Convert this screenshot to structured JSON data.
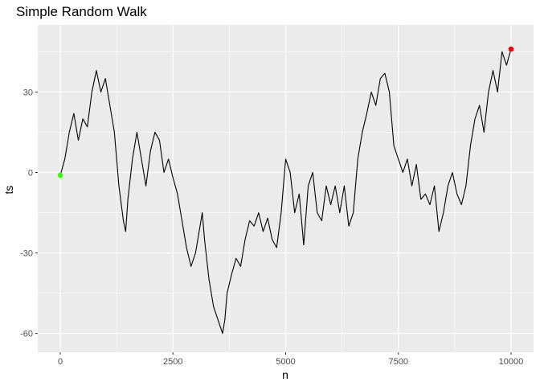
{
  "chart_data": {
    "type": "line",
    "title": "Simple Random Walk",
    "xlabel": "n",
    "ylabel": "ts",
    "xlim": [
      -500,
      10500
    ],
    "ylim": [
      -67,
      55
    ],
    "x_ticks": [
      0,
      2500,
      5000,
      7500,
      10000
    ],
    "x_tick_labels": [
      "0",
      "2500",
      "5000",
      "7500",
      "10000"
    ],
    "y_ticks": [
      -60,
      -30,
      0,
      30
    ],
    "y_tick_labels": [
      "-60",
      "-30",
      "0",
      "30"
    ],
    "grid": true,
    "panel_background": "#ebebeb",
    "grid_color": "#ffffff",
    "line_color": "#000000",
    "series": [
      {
        "points": [
          [
            0,
            -1
          ],
          [
            100,
            5
          ],
          [
            200,
            15
          ],
          [
            300,
            22
          ],
          [
            400,
            12
          ],
          [
            500,
            20
          ],
          [
            600,
            17
          ],
          [
            700,
            30
          ],
          [
            800,
            38
          ],
          [
            900,
            30
          ],
          [
            1000,
            35
          ],
          [
            1100,
            25
          ],
          [
            1200,
            15
          ],
          [
            1300,
            -5
          ],
          [
            1400,
            -18
          ],
          [
            1450,
            -22
          ],
          [
            1500,
            -10
          ],
          [
            1600,
            5
          ],
          [
            1700,
            15
          ],
          [
            1800,
            5
          ],
          [
            1900,
            -5
          ],
          [
            2000,
            8
          ],
          [
            2100,
            15
          ],
          [
            2200,
            12
          ],
          [
            2300,
            0
          ],
          [
            2400,
            5
          ],
          [
            2500,
            -2
          ],
          [
            2600,
            -8
          ],
          [
            2700,
            -18
          ],
          [
            2800,
            -28
          ],
          [
            2900,
            -35
          ],
          [
            3000,
            -30
          ],
          [
            3100,
            -20
          ],
          [
            3150,
            -15
          ],
          [
            3200,
            -25
          ],
          [
            3300,
            -40
          ],
          [
            3400,
            -50
          ],
          [
            3500,
            -55
          ],
          [
            3600,
            -60
          ],
          [
            3650,
            -55
          ],
          [
            3700,
            -45
          ],
          [
            3800,
            -38
          ],
          [
            3900,
            -32
          ],
          [
            4000,
            -35
          ],
          [
            4100,
            -25
          ],
          [
            4200,
            -18
          ],
          [
            4300,
            -20
          ],
          [
            4400,
            -15
          ],
          [
            4500,
            -22
          ],
          [
            4600,
            -17
          ],
          [
            4700,
            -25
          ],
          [
            4800,
            -28
          ],
          [
            4900,
            -15
          ],
          [
            5000,
            5
          ],
          [
            5100,
            0
          ],
          [
            5200,
            -15
          ],
          [
            5300,
            -8
          ],
          [
            5400,
            -27
          ],
          [
            5500,
            -5
          ],
          [
            5600,
            0
          ],
          [
            5700,
            -15
          ],
          [
            5800,
            -18
          ],
          [
            5900,
            -5
          ],
          [
            6000,
            -12
          ],
          [
            6100,
            -5
          ],
          [
            6200,
            -15
          ],
          [
            6300,
            -5
          ],
          [
            6400,
            -20
          ],
          [
            6500,
            -15
          ],
          [
            6600,
            5
          ],
          [
            6700,
            15
          ],
          [
            6800,
            22
          ],
          [
            6900,
            30
          ],
          [
            7000,
            25
          ],
          [
            7100,
            35
          ],
          [
            7200,
            37
          ],
          [
            7300,
            30
          ],
          [
            7400,
            10
          ],
          [
            7500,
            5
          ],
          [
            7600,
            0
          ],
          [
            7700,
            5
          ],
          [
            7800,
            -5
          ],
          [
            7900,
            3
          ],
          [
            8000,
            -10
          ],
          [
            8100,
            -8
          ],
          [
            8200,
            -12
          ],
          [
            8300,
            -5
          ],
          [
            8400,
            -22
          ],
          [
            8500,
            -15
          ],
          [
            8600,
            -5
          ],
          [
            8700,
            0
          ],
          [
            8800,
            -8
          ],
          [
            8900,
            -12
          ],
          [
            9000,
            -5
          ],
          [
            9100,
            10
          ],
          [
            9200,
            20
          ],
          [
            9300,
            25
          ],
          [
            9400,
            15
          ],
          [
            9500,
            30
          ],
          [
            9600,
            38
          ],
          [
            9700,
            30
          ],
          [
            9800,
            45
          ],
          [
            9900,
            40
          ],
          [
            10000,
            46
          ]
        ]
      }
    ],
    "markers": [
      {
        "x": 0,
        "y": -1,
        "color": "#33ff00"
      },
      {
        "x": 10000,
        "y": 46,
        "color": "#ff0000"
      }
    ]
  }
}
